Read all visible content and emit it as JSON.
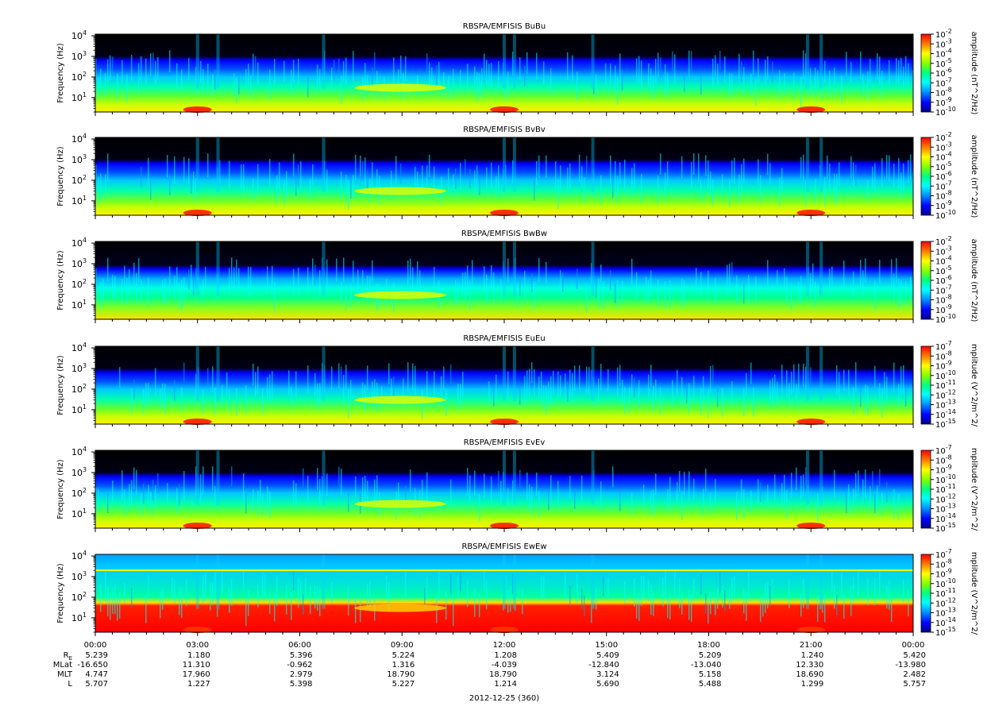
{
  "colors": {
    "background_black": "#000000",
    "colormap_rainbow": [
      "#00008b",
      "#0000ff",
      "#00a0ff",
      "#00ffff",
      "#00ff80",
      "#80ff00",
      "#ffff00",
      "#ff8000",
      "#ff0000"
    ]
  },
  "chart_data": [
    {
      "type": "heatmap",
      "title": "RBSPA/EMFISIS  BuBu",
      "ylabel": "Frequency (Hz)",
      "yscale": "log",
      "ylim": [
        2,
        12000
      ],
      "yticks": [
        "10^1",
        "10^2",
        "10^3",
        "10^4"
      ],
      "colorbar": {
        "label": "amplitude (nT^2/Hz)",
        "scale": "log",
        "range": [
          1e-10,
          0.01
        ],
        "ticks": [
          "10^-2",
          "10^-3",
          "10^-4",
          "10^-5",
          "10^-6",
          "10^-7",
          "10^-8",
          "10^-9",
          "10^-10"
        ]
      },
      "features": [
        {
          "x_start": "07:40",
          "x_end": "10:00",
          "freq_hz": 30,
          "level": "yellow band"
        },
        {
          "x": "03:00",
          "level": "red at low frequency"
        },
        {
          "x": "12:00",
          "level": "red at low frequency"
        },
        {
          "x": "21:00",
          "level": "red at low frequency"
        }
      ]
    },
    {
      "type": "heatmap",
      "title": "RBSPA/EMFISIS  BvBv",
      "ylabel": "Frequency (Hz)",
      "yscale": "log",
      "ylim": [
        2,
        12000
      ],
      "yticks": [
        "10^1",
        "10^2",
        "10^3",
        "10^4"
      ],
      "colorbar": {
        "label": "amplitude (nT^2/Hz)",
        "scale": "log",
        "range": [
          1e-10,
          0.01
        ],
        "ticks": [
          "10^-2",
          "10^-3",
          "10^-4",
          "10^-5",
          "10^-6",
          "10^-7",
          "10^-8",
          "10^-9",
          "10^-10"
        ]
      }
    },
    {
      "type": "heatmap",
      "title": "RBSPA/EMFISIS  BwBw",
      "ylabel": "Frequency (Hz)",
      "yscale": "log",
      "ylim": [
        2,
        12000
      ],
      "yticks": [
        "10^1",
        "10^2",
        "10^3",
        "10^4"
      ],
      "colorbar": {
        "label": "amplitude (nT^2/Hz)",
        "scale": "log",
        "range": [
          1e-10,
          0.01
        ],
        "ticks": [
          "10^-2",
          "10^-3",
          "10^-4",
          "10^-5",
          "10^-6",
          "10^-7",
          "10^-8",
          "10^-9",
          "10^-10"
        ]
      }
    },
    {
      "type": "heatmap",
      "title": "RBSPA/EMFISIS  EuEu",
      "ylabel": "Frequency (Hz)",
      "yscale": "log",
      "ylim": [
        2,
        12000
      ],
      "yticks": [
        "10^1",
        "10^2",
        "10^3",
        "10^4"
      ],
      "colorbar": {
        "label": "mplitude (V^2/m^2/",
        "scale": "log",
        "range": [
          1e-15,
          1e-07
        ],
        "ticks": [
          "10^-7",
          "10^-8",
          "10^-9",
          "10^-10",
          "10^-11",
          "10^-12",
          "10^-13",
          "10^-14",
          "10^-15"
        ]
      }
    },
    {
      "type": "heatmap",
      "title": "RBSPA/EMFISIS  EvEv",
      "ylabel": "Frequency (Hz)",
      "yscale": "log",
      "ylim": [
        2,
        12000
      ],
      "yticks": [
        "10^1",
        "10^2",
        "10^3",
        "10^4"
      ],
      "colorbar": {
        "label": "mplitude (V^2/m^2/",
        "scale": "log",
        "range": [
          1e-15,
          1e-07
        ],
        "ticks": [
          "10^-7",
          "10^-8",
          "10^-9",
          "10^-10",
          "10^-11",
          "10^-12",
          "10^-13",
          "10^-14",
          "10^-15"
        ]
      }
    },
    {
      "type": "heatmap",
      "title": "RBSPA/EMFISIS  EwEw",
      "ylabel": "Frequency (Hz)",
      "yscale": "log",
      "ylim": [
        2,
        12000
      ],
      "yticks": [
        "10^1",
        "10^2",
        "10^3",
        "10^4"
      ],
      "colorbar": {
        "label": "mplitude (V^2/m^2/",
        "scale": "log",
        "range": [
          1e-15,
          1e-07
        ],
        "ticks": [
          "10^-7",
          "10^-8",
          "10^-9",
          "10^-10",
          "10^-11",
          "10^-12",
          "10^-13",
          "10^-14",
          "10^-15"
        ]
      }
    }
  ],
  "x_axis": {
    "ticks": [
      "00:00",
      "03:00",
      "06:00",
      "09:00",
      "12:00",
      "15:00",
      "18:00",
      "21:00",
      "00:00"
    ],
    "date_label": "2012-12-25 (360)"
  },
  "ephemeris": {
    "rows": [
      {
        "label_main": "R",
        "label_sub": "E",
        "values": [
          "5.239",
          "1.180",
          "5.396",
          "5.224",
          "1.208",
          "5.409",
          "5.209",
          "1.240",
          "5.420"
        ]
      },
      {
        "label_main": "MLat",
        "label_sub": "",
        "values": [
          "-16.650",
          "11.310",
          "-0.962",
          "1.316",
          "-4.039",
          "-12.840",
          "-13.040",
          "12.330",
          "-13.980"
        ]
      },
      {
        "label_main": "MLT",
        "label_sub": "",
        "values": [
          "4.747",
          "17.960",
          "2.979",
          "18.790",
          "18.790",
          "3.124",
          "5.158",
          "18.690",
          "2.482"
        ]
      },
      {
        "label_main": "L",
        "label_sub": "",
        "values": [
          "5.707",
          "1.227",
          "5.398",
          "5.227",
          "1.214",
          "5.690",
          "5.488",
          "1.299",
          "5.757"
        ]
      }
    ]
  }
}
